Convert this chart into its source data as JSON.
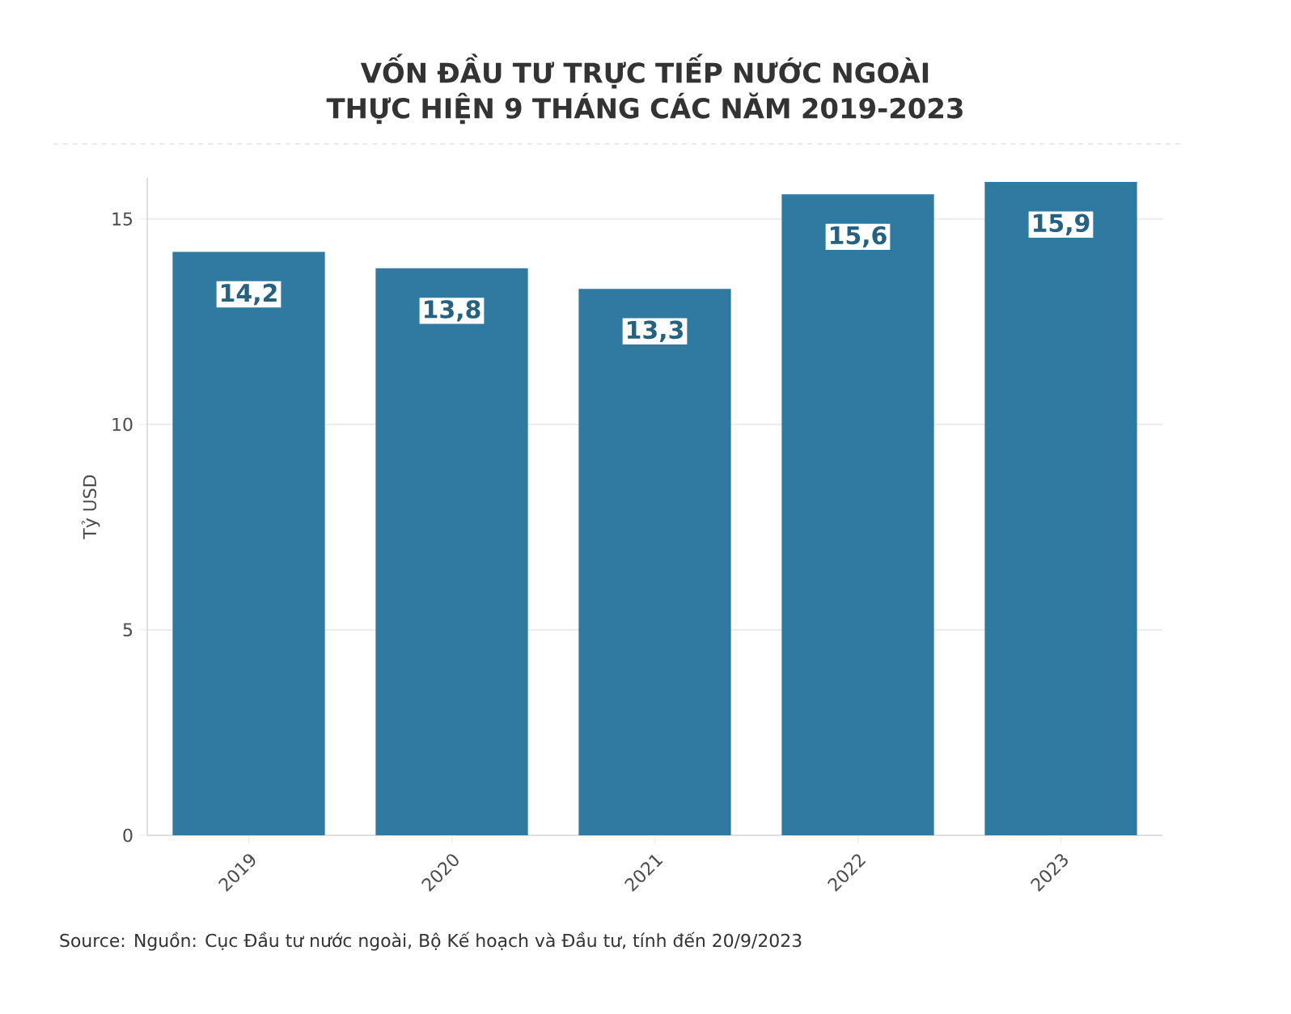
{
  "chart_data": {
    "type": "bar",
    "title": "VỐN ĐẦU TƯ TRỰC TIẾP NƯỚC NGOÀI THỰC HIỆN 9 THÁNG CÁC NĂM 2019-2023",
    "ylabel": "Tỷ USD",
    "categories": [
      "2019",
      "2020",
      "2021",
      "2022",
      "2023"
    ],
    "values": [
      14.2,
      13.8,
      13.3,
      15.6,
      15.9
    ],
    "value_labels": [
      "14,2",
      "13,8",
      "13,3",
      "15,6",
      "15,9"
    ],
    "color": "#2f7aa1",
    "ylim": [
      0,
      16
    ],
    "yticks": [
      0,
      5,
      10,
      15
    ],
    "grid": "y",
    "annotations": [
      "Source: Nguồn: Cục Đầu tư nước ngoài, Bộ Kế hoạch và Đầu tư, tính đến 20/9/2023"
    ]
  }
}
